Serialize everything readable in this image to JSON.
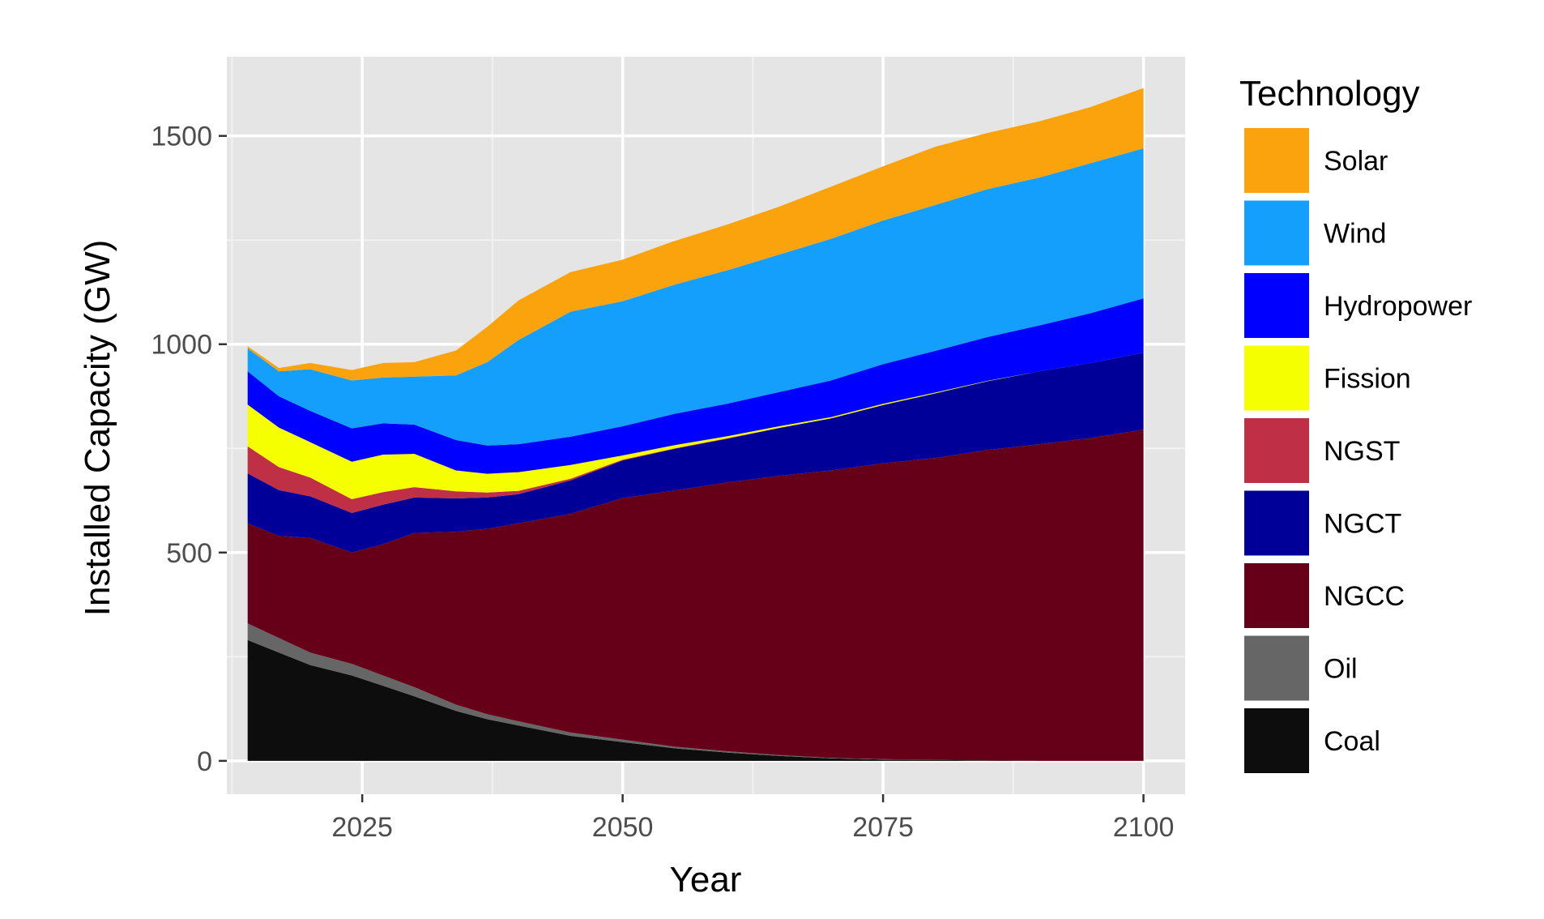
{
  "chart_data": {
    "type": "area",
    "stacked": true,
    "xlabel": "Year",
    "ylabel": "Installed Capacity (GW)",
    "xlim": [
      2012,
      2104
    ],
    "ylim": [
      -80,
      1690
    ],
    "x_ticks": [
      2025,
      2050,
      2075,
      2100
    ],
    "y_ticks": [
      0,
      500,
      1000,
      1500
    ],
    "grid": true,
    "background": "#e5e5e5",
    "legend": {
      "title": "Technology",
      "position": "right"
    },
    "x": [
      2014,
      2017,
      2020,
      2024,
      2027,
      2030,
      2034,
      2037,
      2040,
      2045,
      2050,
      2055,
      2060,
      2065,
      2070,
      2075,
      2080,
      2085,
      2090,
      2095,
      2100
    ],
    "series": [
      {
        "name": "Coal",
        "color": "#0d0d0d",
        "values": [
          290,
          260,
          230,
          205,
          180,
          155,
          120,
          100,
          85,
          60,
          45,
          30,
          20,
          12,
          6,
          3,
          2,
          1,
          0,
          0,
          0
        ]
      },
      {
        "name": "Oil",
        "color": "#666666",
        "values": [
          40,
          35,
          30,
          28,
          25,
          22,
          15,
          12,
          10,
          8,
          6,
          4,
          3,
          2,
          1,
          1,
          0,
          0,
          0,
          0,
          0
        ]
      },
      {
        "name": "NGCC",
        "color": "#660018",
        "values": [
          240,
          245,
          275,
          267,
          315,
          370,
          415,
          445,
          475,
          525,
          580,
          615,
          645,
          670,
          690,
          710,
          725,
          745,
          760,
          775,
          795
        ]
      },
      {
        "name": "NGCT",
        "color": "#000099",
        "values": [
          120,
          110,
          100,
          95,
          95,
          85,
          80,
          75,
          70,
          80,
          90,
          100,
          105,
          115,
          125,
          140,
          155,
          165,
          175,
          180,
          185
        ]
      },
      {
        "name": "NGST",
        "color": "#bf2f46",
        "values": [
          65,
          55,
          45,
          33,
          30,
          25,
          17,
          12,
          8,
          4,
          2,
          1,
          1,
          0,
          0,
          0,
          0,
          0,
          0,
          0,
          0
        ]
      },
      {
        "name": "Fission",
        "color": "#f5ff00",
        "values": [
          100,
          95,
          85,
          90,
          90,
          80,
          50,
          45,
          45,
          33,
          10,
          8,
          5,
          4,
          3,
          3,
          2,
          1,
          0,
          0,
          0
        ]
      },
      {
        "name": "Hydropower",
        "color": "#0000ff",
        "values": [
          80,
          75,
          75,
          80,
          75,
          70,
          73,
          68,
          67,
          68,
          70,
          75,
          78,
          82,
          88,
          95,
          100,
          105,
          110,
          120,
          130
        ]
      },
      {
        "name": "Wind",
        "color": "#159ffc",
        "values": [
          55,
          60,
          100,
          115,
          110,
          115,
          155,
          200,
          250,
          300,
          300,
          310,
          320,
          330,
          340,
          345,
          350,
          355,
          355,
          360,
          360
        ]
      },
      {
        "name": "Solar",
        "color": "#fba30c",
        "values": [
          5,
          8,
          15,
          25,
          35,
          35,
          60,
          85,
          95,
          95,
          100,
          105,
          110,
          115,
          125,
          130,
          140,
          135,
          135,
          135,
          145
        ]
      }
    ]
  }
}
